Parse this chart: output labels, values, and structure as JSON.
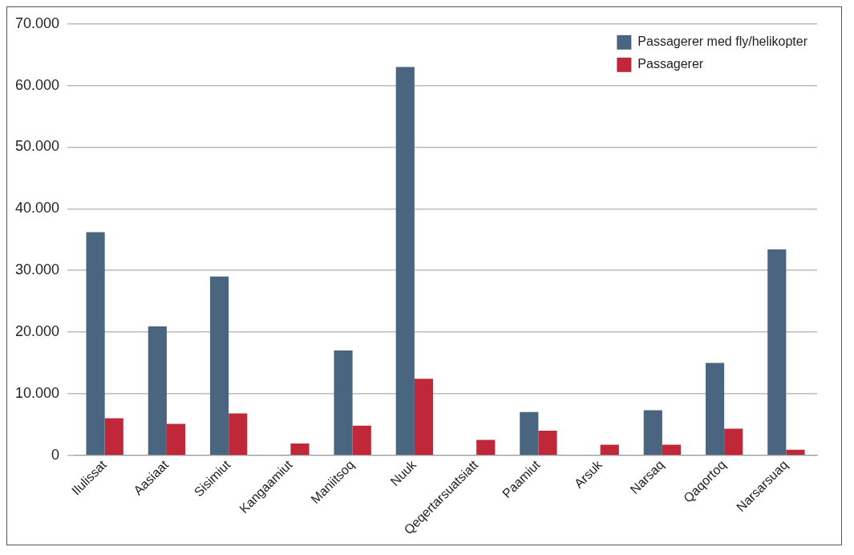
{
  "chart_data": {
    "type": "bar",
    "categories": [
      "Ilulissat",
      "Aasiaat",
      "Sisimiut",
      "Kangaamiut",
      "Maniitsoq",
      "Nuuk",
      "Qeqertarsuatsiatt",
      "Paamiut",
      "Arsuk",
      "Narsaq",
      "Qaqortoq",
      "Narsarsuaq"
    ],
    "series": [
      {
        "name": "Passagerer med fly/helikopter",
        "color": "#4a6580",
        "values": [
          36200,
          20900,
          29000,
          0,
          17000,
          63000,
          0,
          7000,
          0,
          7300,
          15000,
          33400
        ]
      },
      {
        "name": "Passagerer",
        "color": "#c0283a",
        "values": [
          6000,
          5100,
          6800,
          1900,
          4800,
          12400,
          2500,
          4000,
          1700,
          1700,
          4300,
          900
        ]
      }
    ],
    "ylim": [
      0,
      70000
    ],
    "yticks": [
      0,
      {
        "value": 10000,
        "label": "10.000"
      },
      {
        "value": 20000,
        "label": "20.000"
      },
      {
        "value": 30000,
        "label": "30.000"
      },
      {
        "value": 40000,
        "label": "40.000"
      },
      {
        "value": 50000,
        "label": "50.000"
      },
      {
        "value": 60000,
        "label": "60.000"
      },
      {
        "value": 70000,
        "label": "70.000"
      }
    ],
    "grid": "y",
    "legend": "top right"
  }
}
